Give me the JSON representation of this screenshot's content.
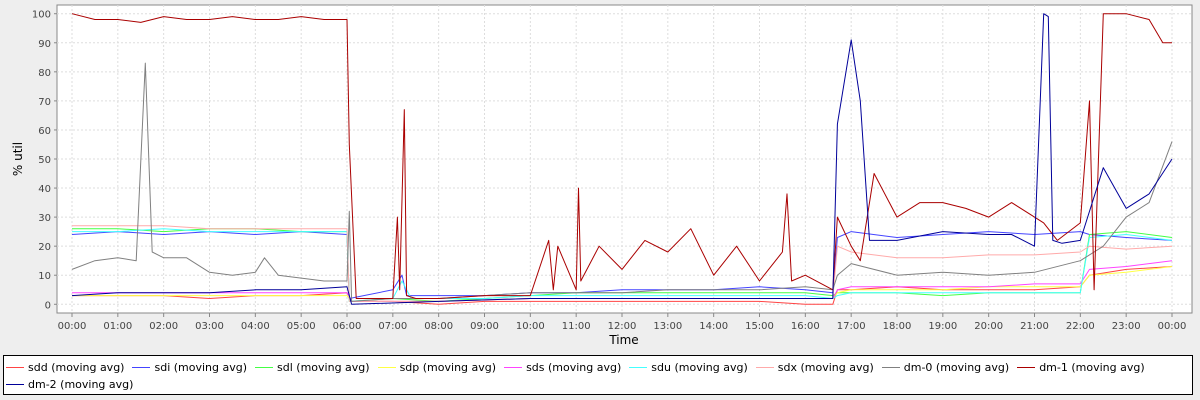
{
  "chart_data": {
    "type": "line",
    "xlabel": "Time",
    "ylabel": "% util",
    "ylim": [
      -3,
      103
    ],
    "yticks": [
      0,
      10,
      20,
      30,
      40,
      50,
      60,
      70,
      80,
      90,
      100
    ],
    "xticks": [
      "00:00",
      "01:00",
      "02:00",
      "03:00",
      "04:00",
      "05:00",
      "06:00",
      "07:00",
      "08:00",
      "09:00",
      "10:00",
      "11:00",
      "12:00",
      "13:00",
      "14:00",
      "15:00",
      "16:00",
      "17:00",
      "18:00",
      "19:00",
      "20:00",
      "21:00",
      "22:00",
      "23:00",
      "00:00"
    ],
    "grid": true,
    "legend_placement": "bottom",
    "series": [
      {
        "name": "sdd (moving avg)",
        "color": "#ff4444",
        "x": [
          0,
          1,
          2,
          3,
          4,
          5,
          6,
          6.1,
          7,
          8,
          9,
          10,
          11,
          12,
          13,
          14,
          15,
          16,
          16.6,
          16.7,
          17,
          18,
          19,
          20,
          21,
          22,
          22.2,
          23,
          24
        ],
        "y": [
          3,
          3,
          3,
          2,
          3,
          3,
          4,
          1,
          1,
          0,
          1,
          1,
          1,
          1,
          1,
          1,
          1,
          0,
          0,
          5,
          5,
          6,
          5,
          5,
          5,
          6,
          10,
          12,
          13
        ]
      },
      {
        "name": "sdi (moving avg)",
        "color": "#4444ff",
        "x": [
          0,
          1,
          2,
          3,
          4,
          5,
          6,
          6.05,
          7,
          7.2,
          7.3,
          8,
          9,
          10,
          11,
          12,
          13,
          14,
          15,
          16,
          16.6,
          16.7,
          17,
          18,
          19,
          20,
          21,
          22,
          22.2,
          23,
          24
        ],
        "y": [
          24,
          25,
          24,
          25,
          24,
          25,
          24,
          2,
          5,
          10,
          3,
          3,
          3,
          4,
          4,
          5,
          5,
          5,
          6,
          5,
          4,
          23,
          25,
          23,
          24,
          25,
          24,
          25,
          24,
          23,
          22
        ]
      },
      {
        "name": "sdl (moving avg)",
        "color": "#44ff44",
        "x": [
          0,
          1,
          2,
          3,
          4,
          5,
          6,
          6.05,
          7,
          8,
          9,
          10,
          11,
          12,
          13,
          14,
          15,
          16,
          16.6,
          16.7,
          17,
          18,
          19,
          20,
          21,
          22,
          22.2,
          23,
          24
        ],
        "y": [
          26,
          26,
          25,
          26,
          26,
          25,
          25,
          1,
          2,
          1,
          2,
          3,
          4,
          4,
          4,
          4,
          4,
          4,
          3,
          4,
          4,
          4,
          3,
          4,
          4,
          4,
          24,
          25,
          23
        ]
      },
      {
        "name": "sdp (moving avg)",
        "color": "#ffff44",
        "x": [
          0,
          1,
          2,
          3,
          4,
          5,
          6,
          6.1,
          8,
          10,
          12,
          14,
          16,
          16.6,
          16.7,
          17,
          18,
          19,
          20,
          21,
          22,
          22.2,
          23,
          24
        ],
        "y": [
          3,
          3,
          3,
          3,
          3,
          3,
          3,
          1,
          1,
          2,
          2,
          2,
          2,
          2,
          4,
          5,
          5,
          5,
          6,
          6,
          6,
          10,
          11,
          13
        ]
      },
      {
        "name": "sds (moving avg)",
        "color": "#ff44ff",
        "x": [
          0,
          1,
          2,
          3,
          4,
          5,
          6,
          6.1,
          8,
          10,
          12,
          14,
          16,
          16.6,
          16.7,
          17,
          18,
          19,
          20,
          21,
          22,
          22.2,
          23,
          24
        ],
        "y": [
          4,
          4,
          4,
          4,
          4,
          4,
          4,
          1,
          1,
          2,
          2,
          2,
          2,
          2,
          5,
          6,
          6,
          6,
          6,
          7,
          7,
          12,
          13,
          15
        ]
      },
      {
        "name": "sdu (moving avg)",
        "color": "#44ffff",
        "x": [
          0,
          1,
          2,
          3,
          4,
          5,
          6,
          6.05,
          7,
          7.2,
          7.4,
          8,
          9,
          10,
          11,
          12,
          13,
          14,
          15,
          16,
          16.6,
          16.7,
          17,
          18,
          19,
          20,
          21,
          22,
          22.2,
          23,
          24
        ],
        "y": [
          25,
          25,
          26,
          25,
          25,
          25,
          25,
          1,
          2,
          8,
          2,
          2,
          2,
          3,
          3,
          3,
          3,
          3,
          3,
          3,
          2,
          3,
          4,
          4,
          4,
          4,
          4,
          4,
          23,
          24,
          22
        ]
      },
      {
        "name": "sdx (moving avg)",
        "color": "#ffaaaa",
        "x": [
          0,
          1,
          2,
          3,
          4,
          5,
          6,
          6.05,
          8,
          10,
          12,
          14,
          16,
          16.6,
          16.7,
          17,
          18,
          19,
          20,
          21,
          22,
          22.2,
          23,
          24
        ],
        "y": [
          27,
          27,
          27,
          26,
          26,
          26,
          26,
          1,
          1,
          2,
          2,
          2,
          2,
          2,
          20,
          18,
          16,
          16,
          17,
          17,
          18,
          20,
          19,
          20
        ]
      },
      {
        "name": "dm-0 (moving avg)",
        "color": "#808080",
        "x": [
          0,
          0.5,
          1,
          1.4,
          1.6,
          1.75,
          2,
          2.5,
          3,
          3.5,
          4,
          4.2,
          4.5,
          5,
          5.5,
          6,
          6.05,
          6.1,
          7,
          8,
          9,
          10,
          11,
          12,
          13,
          14,
          15,
          16,
          16.6,
          16.7,
          17,
          18,
          19,
          20,
          21,
          22,
          22.5,
          23,
          23.5,
          24
        ],
        "y": [
          12,
          15,
          16,
          15,
          83,
          18,
          16,
          16,
          11,
          10,
          11,
          16,
          10,
          9,
          8,
          8,
          32,
          1,
          2,
          2,
          3,
          4,
          4,
          4,
          5,
          5,
          5,
          6,
          5,
          10,
          14,
          10,
          11,
          10,
          11,
          15,
          20,
          30,
          35,
          56
        ]
      },
      {
        "name": "dm-1 (moving avg)",
        "color": "#aa0000",
        "x": [
          0,
          0.5,
          1,
          1.5,
          2,
          2.5,
          3,
          3.5,
          4,
          4.5,
          5,
          5.5,
          6,
          6.05,
          6.2,
          7,
          7.1,
          7.15,
          7.25,
          7.3,
          7.5,
          8,
          9,
          10,
          10.4,
          10.5,
          10.6,
          11,
          11.05,
          11.1,
          11.5,
          12,
          12.5,
          13,
          13.5,
          14,
          14.5,
          15,
          15.5,
          15.6,
          15.7,
          16,
          16.6,
          16.7,
          17,
          17.2,
          17.5,
          18,
          18.5,
          19,
          19.5,
          20,
          20.5,
          21,
          21.2,
          21.5,
          22,
          22.2,
          22.3,
          22.5,
          23,
          23.5,
          23.8,
          24
        ],
        "y": [
          100,
          98,
          98,
          97,
          99,
          98,
          98,
          99,
          98,
          98,
          99,
          98,
          98,
          55,
          2,
          2,
          30,
          5,
          67,
          3,
          2,
          2,
          3,
          3,
          22,
          5,
          20,
          5,
          40,
          8,
          20,
          12,
          22,
          18,
          26,
          10,
          20,
          8,
          18,
          38,
          8,
          10,
          5,
          30,
          20,
          15,
          45,
          30,
          35,
          35,
          33,
          30,
          35,
          30,
          28,
          22,
          28,
          70,
          5,
          100,
          100,
          98,
          90,
          90
        ]
      },
      {
        "name": "dm-2 (moving avg)",
        "color": "#000099",
        "x": [
          0,
          1,
          2,
          3,
          4,
          5,
          6,
          6.05,
          6.1,
          8,
          10,
          11,
          12,
          13,
          14,
          15,
          16,
          16.6,
          16.7,
          17,
          17.2,
          17.4,
          18,
          19,
          20,
          20.5,
          21,
          21.2,
          21.3,
          21.4,
          21.6,
          22,
          22.5,
          23,
          23.5,
          24
        ],
        "y": [
          3,
          4,
          4,
          4,
          5,
          5,
          6,
          3,
          0,
          1,
          2,
          2,
          2,
          2,
          2,
          2,
          2,
          2,
          62,
          91,
          70,
          22,
          22,
          25,
          24,
          24,
          20,
          100,
          99,
          22,
          21,
          22,
          47,
          33,
          38,
          50
        ]
      }
    ]
  },
  "legend_rows": [
    [
      "sdd (moving avg)",
      "sdi (moving avg)",
      "sdl (moving avg)",
      "sdp (moving avg)",
      "sds (moving avg)",
      "sdu (moving avg)",
      "sdx (moving avg)",
      "dm-0 (moving avg)",
      "dm-1 (moving avg)"
    ],
    [
      "dm-2 (moving avg)"
    ]
  ]
}
